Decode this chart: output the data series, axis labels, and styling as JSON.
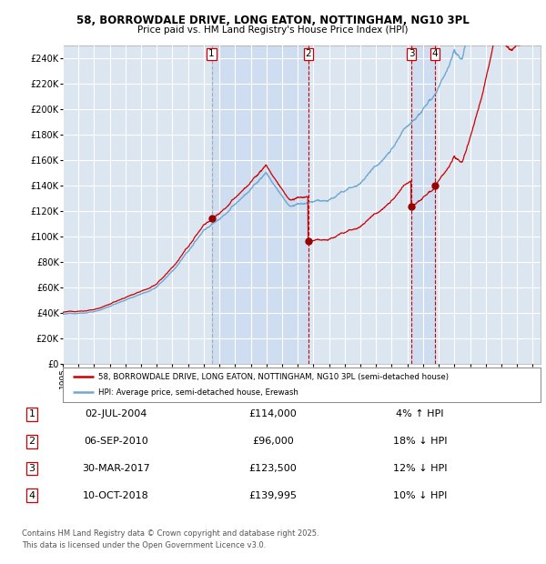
{
  "title_line1": "58, BORROWDALE DRIVE, LONG EATON, NOTTINGHAM, NG10 3PL",
  "title_line2": "Price paid vs. HM Land Registry's House Price Index (HPI)",
  "ylim": [
    0,
    250000
  ],
  "yticks": [
    0,
    20000,
    40000,
    60000,
    80000,
    100000,
    120000,
    140000,
    160000,
    180000,
    200000,
    220000,
    240000
  ],
  "ytick_labels": [
    "£0",
    "£20K",
    "£40K",
    "£60K",
    "£80K",
    "£100K",
    "£120K",
    "£140K",
    "£160K",
    "£180K",
    "£200K",
    "£220K",
    "£240K"
  ],
  "xlim_start": 1995.0,
  "xlim_end": 2025.5,
  "background_color": "#ffffff",
  "plot_bg_color": "#dce6f1",
  "grid_color": "#ffffff",
  "hpi_line_color": "#6fa8d0",
  "price_line_color": "#cc0000",
  "sale_marker_color": "#990000",
  "shade_color": "#c5d8ee",
  "legend_line1": "58, BORROWDALE DRIVE, LONG EATON, NOTTINGHAM, NG10 3PL (semi-detached house)",
  "legend_line2": "HPI: Average price, semi-detached house, Erewash",
  "sales": [
    {
      "num": 1,
      "date": "02-JUL-2004",
      "year": 2004.5,
      "price": 114000,
      "pct": "4%",
      "dir": "↑",
      "vline_style": "--",
      "vline_color": "#aaaaaa"
    },
    {
      "num": 2,
      "date": "06-SEP-2010",
      "year": 2010.67,
      "price": 96000,
      "pct": "18%",
      "dir": "↓",
      "vline_style": "--",
      "vline_color": "#cc0000"
    },
    {
      "num": 3,
      "date": "30-MAR-2017",
      "year": 2017.25,
      "price": 123500,
      "pct": "12%",
      "dir": "↓",
      "vline_style": "--",
      "vline_color": "#cc0000"
    },
    {
      "num": 4,
      "date": "10-OCT-2018",
      "year": 2018.77,
      "price": 139995,
      "pct": "10%",
      "dir": "↓",
      "vline_style": "--",
      "vline_color": "#cc0000"
    }
  ],
  "footer_line1": "Contains HM Land Registry data © Crown copyright and database right 2025.",
  "footer_line2": "This data is licensed under the Open Government Licence v3.0."
}
